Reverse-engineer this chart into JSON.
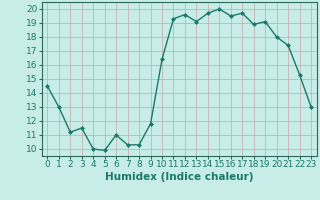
{
  "x": [
    0,
    1,
    2,
    3,
    4,
    5,
    6,
    7,
    8,
    9,
    10,
    11,
    12,
    13,
    14,
    15,
    16,
    17,
    18,
    19,
    20,
    21,
    22,
    23
  ],
  "y": [
    14.5,
    13.0,
    11.2,
    11.5,
    10.0,
    9.9,
    11.0,
    10.3,
    10.3,
    11.8,
    16.4,
    19.3,
    19.6,
    19.1,
    19.7,
    20.0,
    19.5,
    19.7,
    18.9,
    19.1,
    18.0,
    17.4,
    15.3,
    13.0
  ],
  "line_color": "#1a7a6a",
  "marker": "D",
  "marker_size": 2.0,
  "bg_color": "#c8ece8",
  "grid_color": "#c4a8a8",
  "xlabel": "Humidex (Indice chaleur)",
  "ylabel_ticks": [
    10,
    11,
    12,
    13,
    14,
    15,
    16,
    17,
    18,
    19,
    20
  ],
  "xlim": [
    -0.5,
    23.5
  ],
  "ylim": [
    9.5,
    20.5
  ],
  "xlabel_fontsize": 7.5,
  "tick_fontsize": 6.5,
  "linewidth": 1.0
}
